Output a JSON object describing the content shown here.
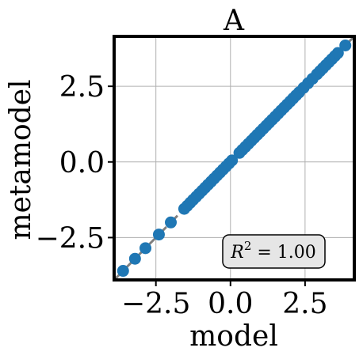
{
  "chart_data": {
    "type": "scatter",
    "title": "A",
    "xlabel": "model",
    "ylabel": "metamodel",
    "xlim": [
      -3.9,
      4.15
    ],
    "ylim": [
      -3.9,
      4.15
    ],
    "xticks": [
      -2.5,
      0.0,
      2.5
    ],
    "yticks": [
      -2.5,
      0.0,
      2.5
    ],
    "xtick_labels": [
      "−2.5",
      "0.0",
      "2.5"
    ],
    "ytick_labels": [
      "−2.5",
      "0.0",
      "2.5"
    ],
    "grid": true,
    "reference_line": "y = x (dashed)",
    "annotation": {
      "text_main": "R",
      "text_sup": "2",
      "text_rest": " = 1.00",
      "placement": "bottom-right"
    },
    "colors": {
      "points": "#1f77b4",
      "reference_line": "#808080",
      "grid": "#b0b0b0",
      "frame": "#000000",
      "annotation_fill": "#e6e6e6"
    },
    "points": [
      {
        "x": -3.6,
        "y": -3.6
      },
      {
        "x": -3.2,
        "y": -3.2
      },
      {
        "x": -2.85,
        "y": -2.85
      },
      {
        "x": -2.4,
        "y": -2.4
      },
      {
        "x": -2.0,
        "y": -2.0
      },
      {
        "x": -1.55,
        "y": -1.55
      },
      {
        "x": -1.45,
        "y": -1.45
      },
      {
        "x": -1.35,
        "y": -1.35
      },
      {
        "x": -1.25,
        "y": -1.25
      },
      {
        "x": -1.15,
        "y": -1.15
      },
      {
        "x": -1.05,
        "y": -1.05
      },
      {
        "x": -0.95,
        "y": -0.95
      },
      {
        "x": -0.85,
        "y": -0.85
      },
      {
        "x": -0.75,
        "y": -0.75
      },
      {
        "x": -0.65,
        "y": -0.65
      },
      {
        "x": -0.55,
        "y": -0.55
      },
      {
        "x": -0.45,
        "y": -0.45
      },
      {
        "x": -0.35,
        "y": -0.35
      },
      {
        "x": -0.25,
        "y": -0.25
      },
      {
        "x": -0.15,
        "y": -0.15
      },
      {
        "x": -0.05,
        "y": -0.05
      },
      {
        "x": 0.05,
        "y": 0.05
      },
      {
        "x": 0.3,
        "y": 0.3
      },
      {
        "x": 0.4,
        "y": 0.4
      },
      {
        "x": 0.5,
        "y": 0.5
      },
      {
        "x": 0.6,
        "y": 0.6
      },
      {
        "x": 0.7,
        "y": 0.7
      },
      {
        "x": 0.8,
        "y": 0.8
      },
      {
        "x": 0.9,
        "y": 0.9
      },
      {
        "x": 1.0,
        "y": 1.0
      },
      {
        "x": 1.1,
        "y": 1.1
      },
      {
        "x": 1.2,
        "y": 1.2
      },
      {
        "x": 1.3,
        "y": 1.3
      },
      {
        "x": 1.4,
        "y": 1.4
      },
      {
        "x": 1.5,
        "y": 1.5
      },
      {
        "x": 1.6,
        "y": 1.6
      },
      {
        "x": 1.7,
        "y": 1.7
      },
      {
        "x": 1.8,
        "y": 1.8
      },
      {
        "x": 1.9,
        "y": 1.9
      },
      {
        "x": 2.0,
        "y": 2.0
      },
      {
        "x": 2.1,
        "y": 2.1
      },
      {
        "x": 2.2,
        "y": 2.2
      },
      {
        "x": 2.3,
        "y": 2.3
      },
      {
        "x": 2.45,
        "y": 2.45
      },
      {
        "x": 2.6,
        "y": 2.6
      },
      {
        "x": 2.75,
        "y": 2.75
      },
      {
        "x": 2.9,
        "y": 2.9
      },
      {
        "x": 3.0,
        "y": 3.0
      },
      {
        "x": 3.1,
        "y": 3.1
      },
      {
        "x": 3.2,
        "y": 3.2
      },
      {
        "x": 3.3,
        "y": 3.3
      },
      {
        "x": 3.4,
        "y": 3.4
      },
      {
        "x": 3.5,
        "y": 3.5
      },
      {
        "x": 3.6,
        "y": 3.6
      },
      {
        "x": 3.85,
        "y": 3.85
      }
    ]
  }
}
